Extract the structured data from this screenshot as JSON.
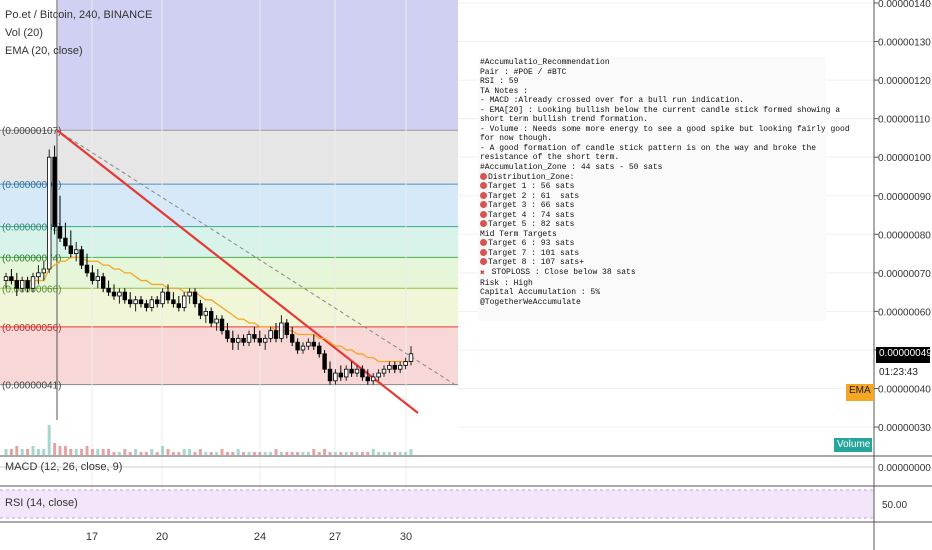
{
  "header": {
    "symbol_line": "Po.et / Bitcoin, 240, BINANCE",
    "vol_label": "Vol (20)",
    "ema_label": "EMA (20, close)"
  },
  "indicators": {
    "macd_label": "MACD (12, 26, close, 9)",
    "rsi_label": "RSI (14, close)",
    "macd_axis_value": "0.00000000",
    "rsi_axis_value": "50.00"
  },
  "price_axis": {
    "ticks": [
      "0.00000140",
      "0.00000130",
      "0.00000120",
      "0.00000110",
      "0.00000100",
      "0.00000090",
      "0.00000080",
      "0.00000070",
      "0.00000060",
      "0.00000050",
      "0.00000040",
      "0.00000030"
    ],
    "current_price": "0.00000049",
    "countdown": "01:23:43",
    "ema_badge": "EMA"
  },
  "volume_badge": "Volume",
  "x_axis": {
    "ticks": [
      "17",
      "20",
      "24",
      "27",
      "30"
    ]
  },
  "fib_labels": [
    "(0.00000107)",
    "(0.00000093)",
    "(0.00000082)",
    "(0.00000074)",
    "(0.00000066)",
    "(0.00000056)",
    "(0.00000041)"
  ],
  "colors": {
    "up": "#26a69a",
    "down": "#000000",
    "trend": "#e53935",
    "ema": "#f5a623",
    "fib_bands": [
      "#e6e6e6",
      "#d6e9f8",
      "#d7f3ea",
      "#e6f6d8",
      "#f1f6d9",
      "#f8d7d7"
    ],
    "blue_zone": "#c8c8f0",
    "rsi_band": "#f3e6fb"
  },
  "note": {
    "lines": [
      {
        "icon": "",
        "text": "#Accumulatio_Recommendation"
      },
      {
        "icon": "",
        "text": "Pair : #POE / #BTC"
      },
      {
        "icon": "",
        "text": "RSI : 59"
      },
      {
        "icon": "",
        "text": "TA Notes :"
      },
      {
        "icon": "",
        "text": "- MACD :Already crossed over for a bull run indication."
      },
      {
        "icon": "",
        "text": "- EMA[20] : Looking bullish below the current candle stick formed showing a"
      },
      {
        "icon": "",
        "text": "short term bullish trend formation."
      },
      {
        "icon": "",
        "text": "- Volume : Needs some more energy to see a good spike but looking fairly good"
      },
      {
        "icon": "",
        "text": "for now though."
      },
      {
        "icon": "",
        "text": "- A good formation of candle stick pattern is on the way and broke the"
      },
      {
        "icon": "",
        "text": "resistance of the short term."
      },
      {
        "icon": "",
        "text": "#Accumulation_Zone : 44 sats - 50 sats"
      },
      {
        "icon": "target-icon",
        "text": "Distribution_Zone:"
      },
      {
        "icon": "target-icon",
        "text": "Target 1 : 56 sats"
      },
      {
        "icon": "target-icon",
        "text": "Target 2 : 61  sats"
      },
      {
        "icon": "target-icon",
        "text": "Target 3 : 66 sats"
      },
      {
        "icon": "target-icon",
        "text": "Target 4 : 74 sats"
      },
      {
        "icon": "target-icon",
        "text": "Target 5 : 82 sats"
      },
      {
        "icon": "",
        "text": "Mid Term Targets"
      },
      {
        "icon": "target-icon",
        "text": "Target 6 : 93 sats"
      },
      {
        "icon": "target-icon",
        "text": "Target 7 : 101 sats"
      },
      {
        "icon": "target-icon",
        "text": "Target 8 : 107 sats+"
      },
      {
        "icon": "cross-icon",
        "text": " STOPLOSS : Close below 38 sats"
      },
      {
        "icon": "",
        "text": "Risk : High"
      },
      {
        "icon": "",
        "text": "Capital Accumulation : 5%"
      },
      {
        "icon": "",
        "text": "@TogetherWeAccumulate"
      }
    ]
  },
  "chart_data": {
    "type": "candlestick",
    "title": "Po.et / Bitcoin, 240, BINANCE",
    "price_unit": "BTC",
    "ylim": [
      2.5e-07,
      1.45e-06
    ],
    "x_ticks": [
      "17",
      "20",
      "24",
      "27",
      "30"
    ],
    "fib_levels": [
      1.07e-06,
      9.3e-07,
      8.2e-07,
      7.4e-07,
      6.6e-07,
      5.6e-07,
      4.1e-07
    ],
    "last_price": 4.9e-07,
    "ohlc": [
      [
        6.8e-07,
        7e-07,
        6.6e-07,
        6.9e-07
      ],
      [
        6.9e-07,
        7.1e-07,
        6.7e-07,
        6.8e-07
      ],
      [
        6.8e-07,
        7e-07,
        6.4e-07,
        6.6e-07
      ],
      [
        6.6e-07,
        6.9e-07,
        6.5e-07,
        6.8e-07
      ],
      [
        6.8e-07,
        6.9e-07,
        6.5e-07,
        6.6e-07
      ],
      [
        6.6e-07,
        7e-07,
        6.5e-07,
        6.9e-07
      ],
      [
        6.9e-07,
        7.2e-07,
        6.7e-07,
        7e-07
      ],
      [
        7e-07,
        7.3e-07,
        6.8e-07,
        7.1e-07
      ],
      [
        7.1e-07,
        1.02e-06,
        7e-07,
        1e-06
      ],
      [
        1e-06,
        1.03e-06,
        8e-07,
        8.2e-07
      ],
      [
        8.2e-07,
        9e-07,
        7.8e-07,
        7.9e-07
      ],
      [
        7.9e-07,
        8.3e-07,
        7.6e-07,
        7.7e-07
      ],
      [
        7.7e-07,
        8.1e-07,
        7.4e-07,
        7.5e-07
      ],
      [
        7.5e-07,
        7.8e-07,
        7.3e-07,
        7.6e-07
      ],
      [
        7.6e-07,
        7.7e-07,
        7.1e-07,
        7.2e-07
      ],
      [
        7.2e-07,
        7.5e-07,
        6.9e-07,
        7e-07
      ],
      [
        7e-07,
        7.2e-07,
        6.7e-07,
        6.8e-07
      ],
      [
        6.8e-07,
        7.1e-07,
        6.6e-07,
        6.9e-07
      ],
      [
        6.9e-07,
        7e-07,
        6.5e-07,
        6.6e-07
      ],
      [
        6.6e-07,
        6.8e-07,
        6.4e-07,
        6.5e-07
      ],
      [
        6.5e-07,
        6.7e-07,
        6.3e-07,
        6.4e-07
      ],
      [
        6.4e-07,
        6.6e-07,
        6.2e-07,
        6.5e-07
      ],
      [
        6.5e-07,
        6.6e-07,
        6.2e-07,
        6.3e-07
      ],
      [
        6.3e-07,
        6.5e-07,
        6.1e-07,
        6.2e-07
      ],
      [
        6.2e-07,
        6.4e-07,
        6e-07,
        6.3e-07
      ],
      [
        6.3e-07,
        6.4e-07,
        6.1e-07,
        6.2e-07
      ],
      [
        6.2e-07,
        6.3e-07,
        6e-07,
        6.1e-07
      ],
      [
        6.1e-07,
        6.4e-07,
        6e-07,
        6.3e-07
      ],
      [
        6.3e-07,
        6.4e-07,
        6.1e-07,
        6.2e-07
      ],
      [
        6.2e-07,
        6.6e-07,
        6.1e-07,
        6.5e-07
      ],
      [
        6.5e-07,
        6.7e-07,
        6.2e-07,
        6.3e-07
      ],
      [
        6.3e-07,
        6.5e-07,
        6.1e-07,
        6.2e-07
      ],
      [
        6.2e-07,
        6.4e-07,
        6e-07,
        6.1e-07
      ],
      [
        6.1e-07,
        6.5e-07,
        6e-07,
        6.4e-07
      ],
      [
        6.4e-07,
        6.6e-07,
        6.2e-07,
        6.5e-07
      ],
      [
        6.5e-07,
        6.6e-07,
        6.1e-07,
        6.2e-07
      ],
      [
        6.2e-07,
        6.3e-07,
        5.8e-07,
        5.9e-07
      ],
      [
        5.9e-07,
        6.1e-07,
        5.7e-07,
        6e-07
      ],
      [
        6e-07,
        6.1e-07,
        5.6e-07,
        5.7e-07
      ],
      [
        5.7e-07,
        5.9e-07,
        5.5e-07,
        5.8e-07
      ],
      [
        5.8e-07,
        5.9e-07,
        5.4e-07,
        5.5e-07
      ],
      [
        5.5e-07,
        5.7e-07,
        5.2e-07,
        5.3e-07
      ],
      [
        5.3e-07,
        5.5e-07,
        5e-07,
        5.2e-07
      ],
      [
        5.2e-07,
        5.4e-07,
        5e-07,
        5.3e-07
      ],
      [
        5.3e-07,
        5.4e-07,
        5.1e-07,
        5.2e-07
      ],
      [
        5.2e-07,
        5.5e-07,
        5.1e-07,
        5.4e-07
      ],
      [
        5.4e-07,
        5.6e-07,
        5.2e-07,
        5.3e-07
      ],
      [
        5.3e-07,
        5.5e-07,
        5.1e-07,
        5.2e-07
      ],
      [
        5.2e-07,
        5.4e-07,
        5e-07,
        5.3e-07
      ],
      [
        5.3e-07,
        5.6e-07,
        5.2e-07,
        5.5e-07
      ],
      [
        5.5e-07,
        5.7e-07,
        5.2e-07,
        5.3e-07
      ],
      [
        5.3e-07,
        5.9e-07,
        5.2e-07,
        5.7e-07
      ],
      [
        5.7e-07,
        5.8e-07,
        5.3e-07,
        5.4e-07
      ],
      [
        5.4e-07,
        5.6e-07,
        5.1e-07,
        5.2e-07
      ],
      [
        5.2e-07,
        5.3e-07,
        4.9e-07,
        5e-07
      ],
      [
        5e-07,
        5.2e-07,
        4.9e-07,
        5.1e-07
      ],
      [
        5.1e-07,
        5.3e-07,
        5e-07,
        5.2e-07
      ],
      [
        5.2e-07,
        5.4e-07,
        5e-07,
        5.1e-07
      ],
      [
        5.1e-07,
        5.2e-07,
        4.8e-07,
        4.9e-07
      ],
      [
        4.9e-07,
        5e-07,
        4.4e-07,
        4.5e-07
      ],
      [
        4.5e-07,
        4.7e-07,
        4.1e-07,
        4.2e-07
      ],
      [
        4.2e-07,
        4.5e-07,
        4.1e-07,
        4.4e-07
      ],
      [
        4.4e-07,
        4.6e-07,
        4.2e-07,
        4.3e-07
      ],
      [
        4.3e-07,
        4.6e-07,
        4.2e-07,
        4.5e-07
      ],
      [
        4.5e-07,
        4.7e-07,
        4.3e-07,
        4.4e-07
      ],
      [
        4.4e-07,
        4.6e-07,
        4.3e-07,
        4.5e-07
      ],
      [
        4.5e-07,
        4.6e-07,
        4.2e-07,
        4.3e-07
      ],
      [
        4.3e-07,
        4.5e-07,
        4.1e-07,
        4.2e-07
      ],
      [
        4.2e-07,
        4.4e-07,
        4.1e-07,
        4.3e-07
      ],
      [
        4.3e-07,
        4.5e-07,
        4.2e-07,
        4.4e-07
      ],
      [
        4.4e-07,
        4.6e-07,
        4.3e-07,
        4.5e-07
      ],
      [
        4.5e-07,
        4.7e-07,
        4.4e-07,
        4.6e-07
      ],
      [
        4.6e-07,
        4.7e-07,
        4.4e-07,
        4.5e-07
      ],
      [
        4.5e-07,
        4.7e-07,
        4.4e-07,
        4.6e-07
      ],
      [
        4.6e-07,
        4.8e-07,
        4.5e-07,
        4.7e-07
      ],
      [
        4.7e-07,
        5.1e-07,
        4.6e-07,
        4.9e-07
      ]
    ],
    "ema": [
      6.8e-07,
      6.8e-07,
      6.8e-07,
      6.8e-07,
      6.8e-07,
      6.8e-07,
      6.8e-07,
      6.8e-07,
      7.1e-07,
      7.2e-07,
      7.3e-07,
      7.3e-07,
      7.4e-07,
      7.4e-07,
      7.4e-07,
      7.3e-07,
      7.3e-07,
      7.3e-07,
      7.2e-07,
      7.2e-07,
      7.1e-07,
      7.1e-07,
      7e-07,
      7e-07,
      6.9e-07,
      6.8e-07,
      6.8e-07,
      6.7e-07,
      6.7e-07,
      6.7e-07,
      6.6e-07,
      6.6e-07,
      6.6e-07,
      6.5e-07,
      6.5e-07,
      6.5e-07,
      6.4e-07,
      6.3e-07,
      6.3e-07,
      6.2e-07,
      6.1e-07,
      6e-07,
      5.9e-07,
      5.8e-07,
      5.8e-07,
      5.7e-07,
      5.7e-07,
      5.6e-07,
      5.6e-07,
      5.6e-07,
      5.5e-07,
      5.5e-07,
      5.5e-07,
      5.5e-07,
      5.4e-07,
      5.4e-07,
      5.4e-07,
      5.4e-07,
      5.3e-07,
      5.3e-07,
      5.2e-07,
      5.1e-07,
      5.1e-07,
      5e-07,
      5e-07,
      4.9e-07,
      4.9e-07,
      4.8e-07,
      4.8e-07,
      4.7e-07,
      4.7e-07,
      4.7e-07,
      4.7e-07,
      4.7e-07,
      4.7e-07,
      4.7e-07
    ],
    "volume": [
      0.2,
      0.2,
      0.3,
      0.2,
      0.2,
      0.3,
      0.2,
      0.2,
      1.0,
      0.4,
      0.3,
      0.3,
      0.2,
      0.2,
      0.2,
      0.3,
      0.2,
      0.2,
      0.2,
      0.2,
      0.1,
      0.1,
      0.2,
      0.1,
      0.2,
      0.1,
      0.1,
      0.2,
      0.1,
      0.3,
      0.2,
      0.1,
      0.1,
      0.2,
      0.2,
      0.1,
      0.2,
      0.1,
      0.1,
      0.1,
      0.2,
      0.1,
      0.1,
      0.2,
      0.1,
      0.1,
      0.1,
      0.1,
      0.1,
      0.1,
      0.2,
      0.1,
      0.1,
      0.1,
      0.1,
      0.1,
      0.1,
      0.2,
      0.1,
      0.2,
      0.1,
      0.1,
      0.1,
      0.1,
      0.1,
      0.1,
      0.1,
      0.1,
      0.2,
      0.1,
      0.1,
      0.1,
      0.1,
      0.1,
      0.1,
      0.2
    ]
  }
}
